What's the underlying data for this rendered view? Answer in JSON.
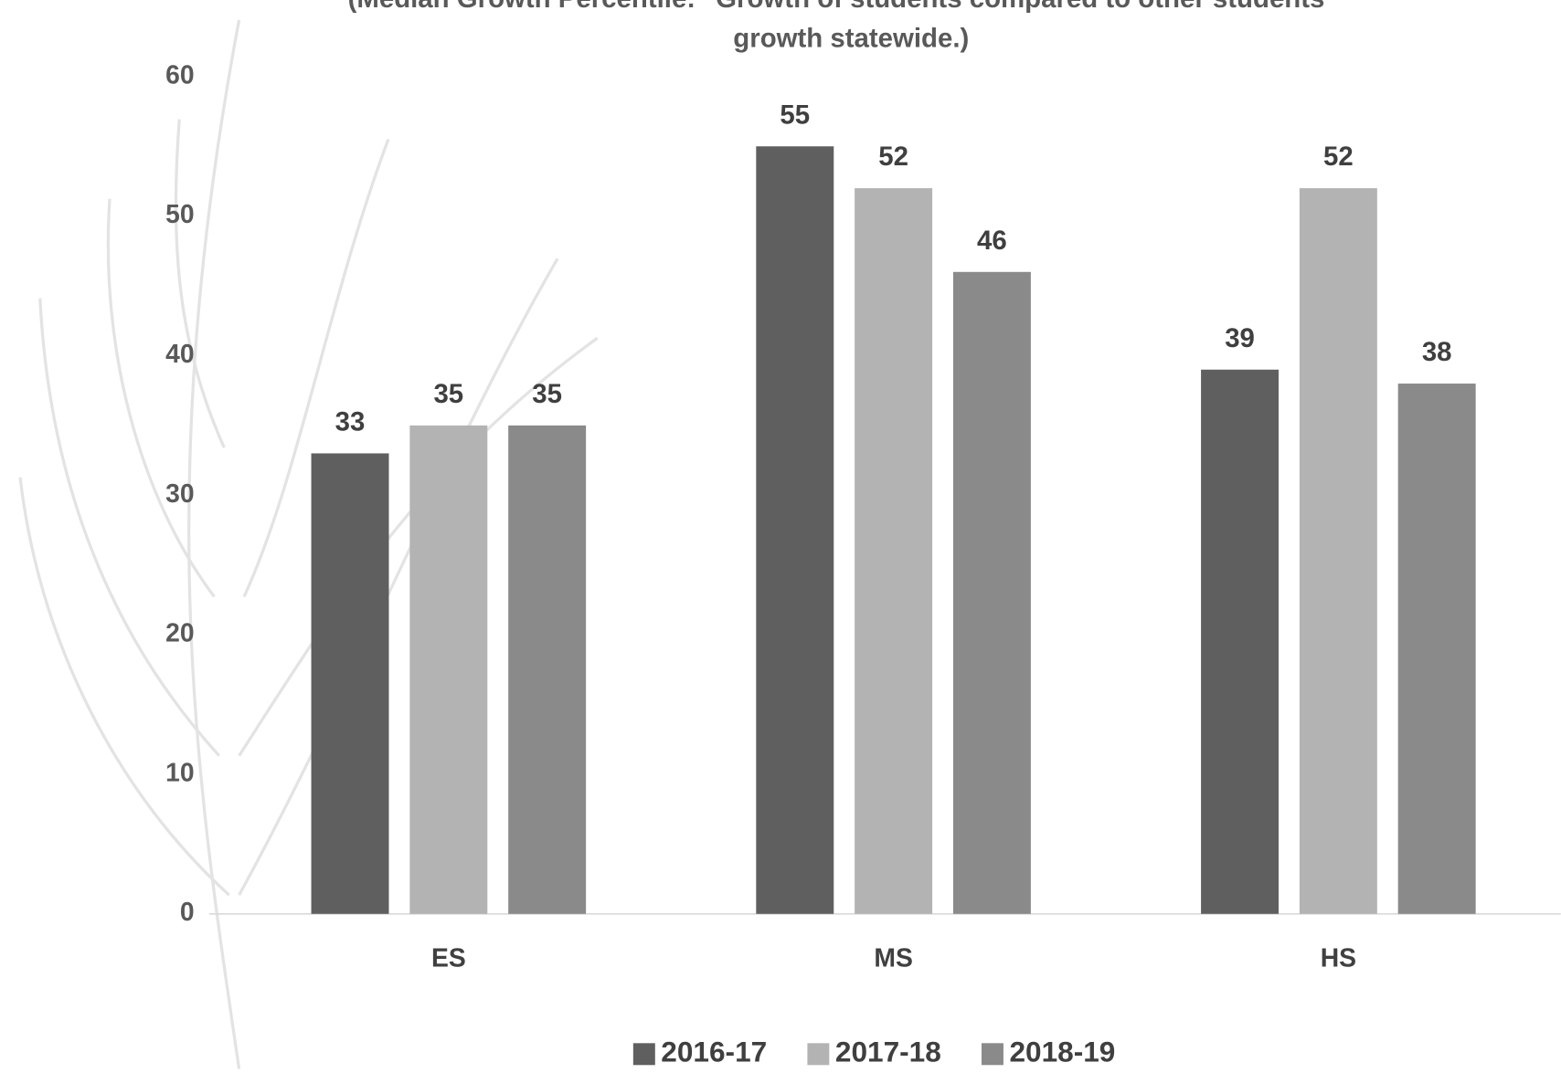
{
  "chart_data": {
    "type": "bar",
    "title": [
      "(Median Growth Percentile:  \"Growth of students compared to other students",
      "growth statewide.)"
    ],
    "categories": [
      "ES",
      "MS",
      "HS"
    ],
    "series": [
      {
        "name": "2016-17",
        "color": "#5f5f5f",
        "values": [
          33,
          55,
          39
        ]
      },
      {
        "name": "2017-18",
        "color": "#b3b3b3",
        "values": [
          35,
          52,
          52
        ]
      },
      {
        "name": "2018-19",
        "color": "#8a8a8a",
        "values": [
          35,
          46,
          38
        ]
      }
    ],
    "ylim": [
      0,
      60
    ],
    "yticks": [
      0,
      10,
      20,
      30,
      40,
      50,
      60
    ],
    "grid": false,
    "legend": "bottom"
  }
}
